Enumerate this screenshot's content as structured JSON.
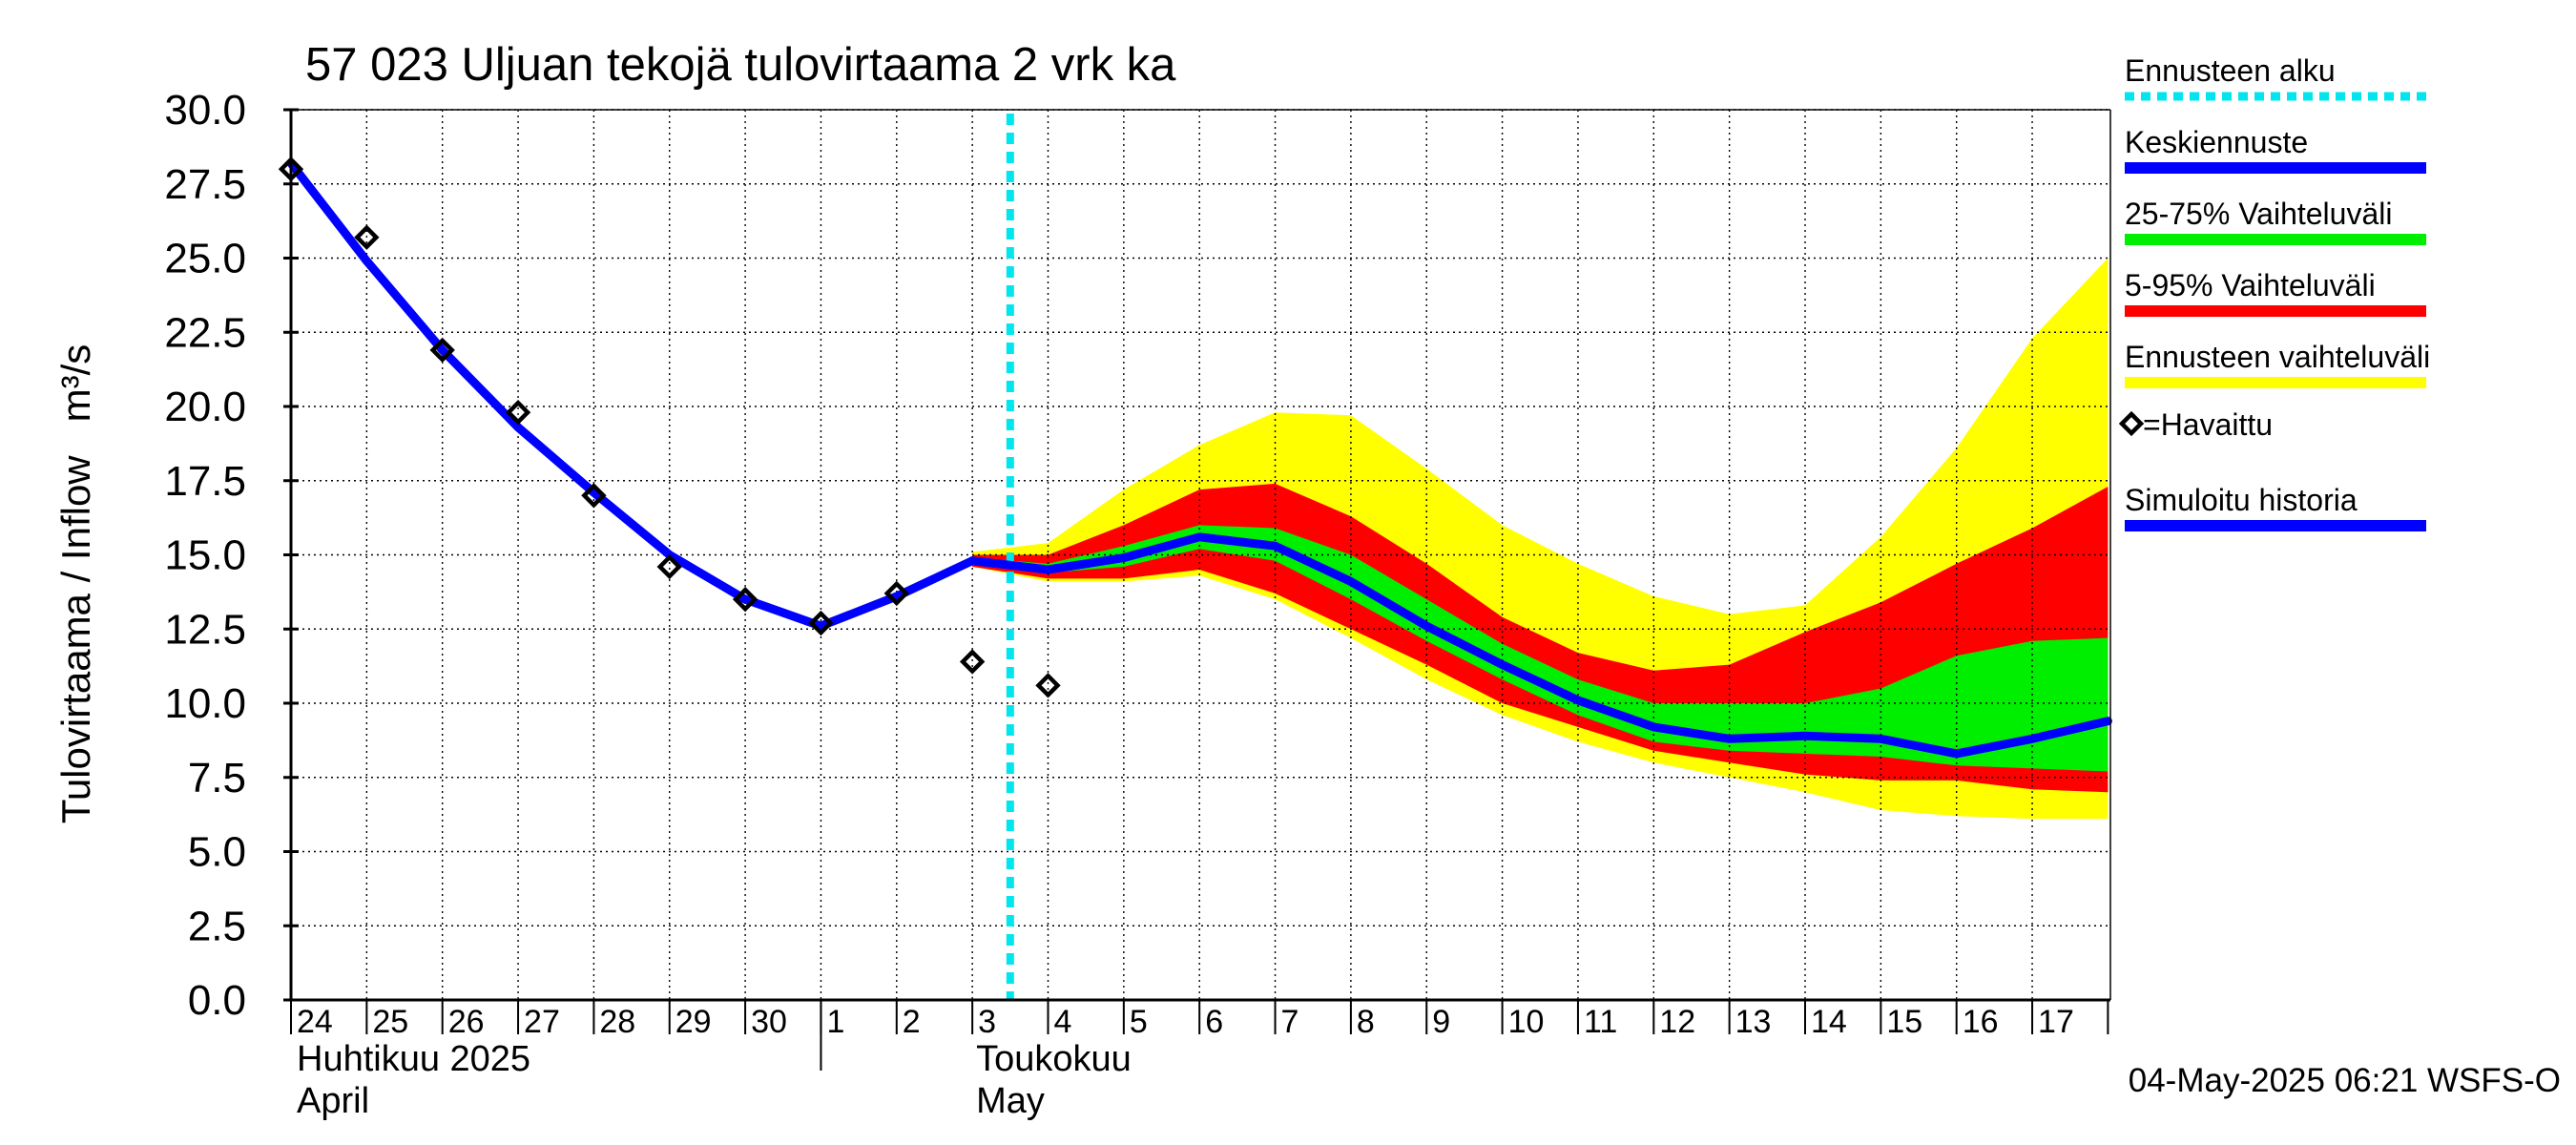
{
  "chart_data": {
    "type": "area",
    "title": "57 023 Uljuan tekojä tulovirtaama 2 vrk ka",
    "ylabel": "Tulovirtaama / Inflow   m³/s",
    "ylim": [
      0,
      30
    ],
    "yticks": [
      "0.0",
      "2.5",
      "5.0",
      "7.5",
      "10.0",
      "12.5",
      "15.0",
      "17.5",
      "20.0",
      "22.5",
      "25.0",
      "27.5",
      "30.0"
    ],
    "x_day_labels": [
      "24",
      "25",
      "26",
      "27",
      "28",
      "29",
      "30",
      "1",
      "2",
      "3",
      "4",
      "5",
      "6",
      "7",
      "8",
      "9",
      "10",
      "11",
      "12",
      "13",
      "14",
      "15",
      "16",
      "17"
    ],
    "month_labels": [
      {
        "fi": "Huhtikuu  2025",
        "en": "April"
      },
      {
        "fi": "Toukokuu",
        "en": "May"
      }
    ],
    "forecast_start": "2025-05-03",
    "timestamp": "04-May-2025 06:21 WSFS-O",
    "grid": true,
    "legend_position": "right",
    "legend": [
      {
        "label": "Ennusteen alku",
        "color": "#00e5ee",
        "style": "dotted"
      },
      {
        "label": "Keskiennuste",
        "color": "#0000ff",
        "style": "line"
      },
      {
        "label": "25-75% Vaihteluväli",
        "color": "#00ee00",
        "style": "line"
      },
      {
        "label": "5-95% Vaihteluväli",
        "color": "#ff0000",
        "style": "line"
      },
      {
        "label": "Ennusteen vaihteluväli",
        "color": "#ffff00",
        "style": "line"
      },
      {
        "label": "=Havaittu",
        "color": "#000000",
        "style": "marker"
      },
      {
        "label": "Simuloitu historia",
        "color": "#0000ff",
        "style": "line"
      }
    ],
    "observed": {
      "name": "Havaittu",
      "x": [
        "2025-04-24",
        "2025-04-25",
        "2025-04-26",
        "2025-04-27",
        "2025-04-28",
        "2025-04-29",
        "2025-04-30",
        "2025-05-01",
        "2025-05-02",
        "2025-05-03",
        "2025-05-04"
      ],
      "y": [
        28.0,
        25.7,
        21.9,
        19.8,
        17.0,
        14.6,
        13.5,
        12.7,
        13.7,
        11.4,
        10.6
      ]
    },
    "simulated_history": {
      "name": "Simuloitu historia",
      "x": [
        "2025-04-24",
        "2025-04-25",
        "2025-04-26",
        "2025-04-27",
        "2025-04-28",
        "2025-04-29",
        "2025-04-30",
        "2025-05-01",
        "2025-05-02",
        "2025-05-03"
      ],
      "y": [
        28.2,
        24.9,
        21.9,
        19.3,
        17.1,
        15.0,
        13.5,
        12.6,
        13.6,
        14.8
      ]
    },
    "forecast": {
      "x": [
        "2025-05-03",
        "2025-05-04",
        "2025-05-05",
        "2025-05-06",
        "2025-05-07",
        "2025-05-08",
        "2025-05-09",
        "2025-05-10",
        "2025-05-11",
        "2025-05-12",
        "2025-05-13",
        "2025-05-14",
        "2025-05-15",
        "2025-05-16",
        "2025-05-17",
        "2025-05-18"
      ],
      "median": [
        14.8,
        14.5,
        14.9,
        15.6,
        15.3,
        14.1,
        12.6,
        11.3,
        10.1,
        9.2,
        8.8,
        8.9,
        8.8,
        8.3,
        8.8,
        9.4
      ],
      "p25": [
        14.7,
        14.4,
        14.6,
        15.2,
        14.8,
        13.5,
        12.1,
        10.8,
        9.6,
        8.7,
        8.4,
        8.3,
        8.2,
        7.9,
        7.8,
        7.7
      ],
      "p75": [
        14.9,
        14.7,
        15.3,
        16.0,
        15.9,
        15.0,
        13.5,
        12.0,
        10.8,
        10.0,
        10.0,
        10.0,
        10.5,
        11.6,
        12.1,
        12.2
      ],
      "p5": [
        14.6,
        14.2,
        14.2,
        14.5,
        13.7,
        12.5,
        11.3,
        10.0,
        9.2,
        8.4,
        8.0,
        7.6,
        7.4,
        7.4,
        7.1,
        7.0
      ],
      "p95": [
        15.0,
        15.0,
        16.0,
        17.2,
        17.4,
        16.3,
        14.7,
        12.9,
        11.7,
        11.1,
        11.3,
        12.4,
        13.4,
        14.7,
        15.9,
        17.3
      ],
      "min": [
        14.6,
        14.1,
        14.1,
        14.3,
        13.5,
        12.2,
        10.8,
        9.6,
        8.7,
        8.0,
        7.5,
        7.0,
        6.4,
        6.2,
        6.1,
        6.1
      ],
      "max": [
        15.1,
        15.4,
        17.2,
        18.7,
        19.8,
        19.7,
        17.9,
        16.0,
        14.7,
        13.6,
        13.0,
        13.3,
        15.6,
        18.6,
        22.3,
        25.0
      ]
    }
  }
}
